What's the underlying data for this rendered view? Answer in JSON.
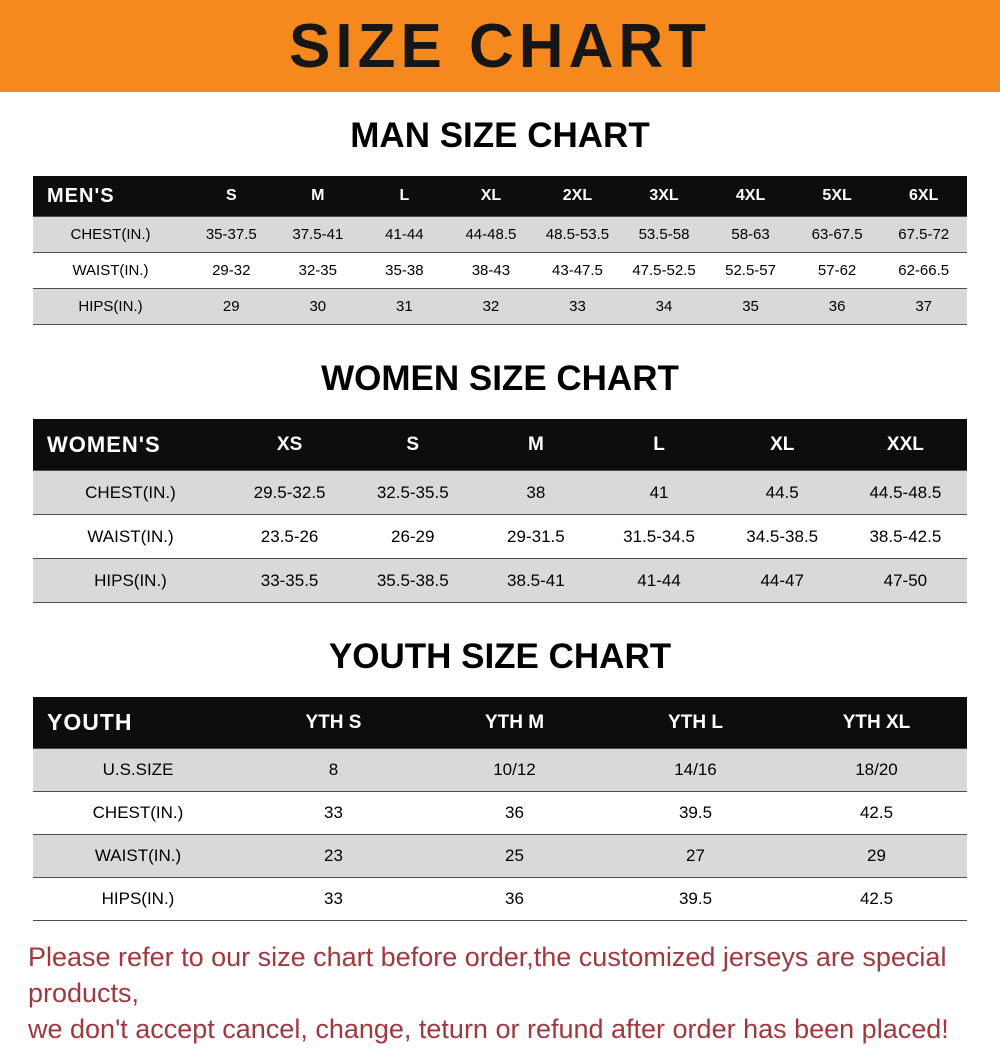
{
  "banner": {
    "title": "SIZE CHART",
    "bg_color": "#f6891e",
    "text_color": "#161616"
  },
  "chart_data": [
    {
      "type": "table",
      "title": "MAN SIZE CHART",
      "corner_label": "MEN'S",
      "columns": [
        "S",
        "M",
        "L",
        "XL",
        "2XL",
        "3XL",
        "4XL",
        "5XL",
        "6XL"
      ],
      "rows": [
        {
          "label": "CHEST(IN.)",
          "values": [
            "35-37.5",
            "37.5-41",
            "41-44",
            "44-48.5",
            "48.5-53.5",
            "53.5-58",
            "58-63",
            "63-67.5",
            "67.5-72"
          ]
        },
        {
          "label": "WAIST(IN.)",
          "values": [
            "29-32",
            "32-35",
            "35-38",
            "38-43",
            "43-47.5",
            "47.5-52.5",
            "52.5-57",
            "57-62",
            "62-66.5"
          ]
        },
        {
          "label": "HIPS(IN.)",
          "values": [
            "29",
            "30",
            "31",
            "32",
            "33",
            "34",
            "35",
            "36",
            "37"
          ]
        }
      ]
    },
    {
      "type": "table",
      "title": "WOMEN SIZE CHART",
      "corner_label": "WOMEN'S",
      "columns": [
        "XS",
        "S",
        "M",
        "L",
        "XL",
        "XXL"
      ],
      "rows": [
        {
          "label": "CHEST(IN.)",
          "values": [
            "29.5-32.5",
            "32.5-35.5",
            "38",
            "41",
            "44.5",
            "44.5-48.5"
          ]
        },
        {
          "label": "WAIST(IN.)",
          "values": [
            "23.5-26",
            "26-29",
            "29-31.5",
            "31.5-34.5",
            "34.5-38.5",
            "38.5-42.5"
          ]
        },
        {
          "label": "HIPS(IN.)",
          "values": [
            "33-35.5",
            "35.5-38.5",
            "38.5-41",
            "41-44",
            "44-47",
            "47-50"
          ]
        }
      ]
    },
    {
      "type": "table",
      "title": "YOUTH SIZE CHART",
      "corner_label": "YOUTH",
      "columns": [
        "YTH S",
        "YTH M",
        "YTH L",
        "YTH XL"
      ],
      "rows": [
        {
          "label": "U.S.SIZE",
          "values": [
            "8",
            "10/12",
            "14/16",
            "18/20"
          ]
        },
        {
          "label": "CHEST(IN.)",
          "values": [
            "33",
            "36",
            "39.5",
            "42.5"
          ]
        },
        {
          "label": "WAIST(IN.)",
          "values": [
            "23",
            "25",
            "27",
            "29"
          ]
        },
        {
          "label": "HIPS(IN.)",
          "values": [
            "33",
            "36",
            "39.5",
            "42.5"
          ]
        }
      ]
    }
  ],
  "footer": {
    "line1": "Please refer to our size chart before order,the customized jerseys are special products,",
    "line2": "we don't accept cancel, change, teturn or refund after order has been placed!",
    "text_color": "#a0393f"
  },
  "colors": {
    "header_row_bg": "#0d0d0d",
    "shaded_row_bg": "#d9d9d9",
    "row_border": "#4d4d4d"
  }
}
